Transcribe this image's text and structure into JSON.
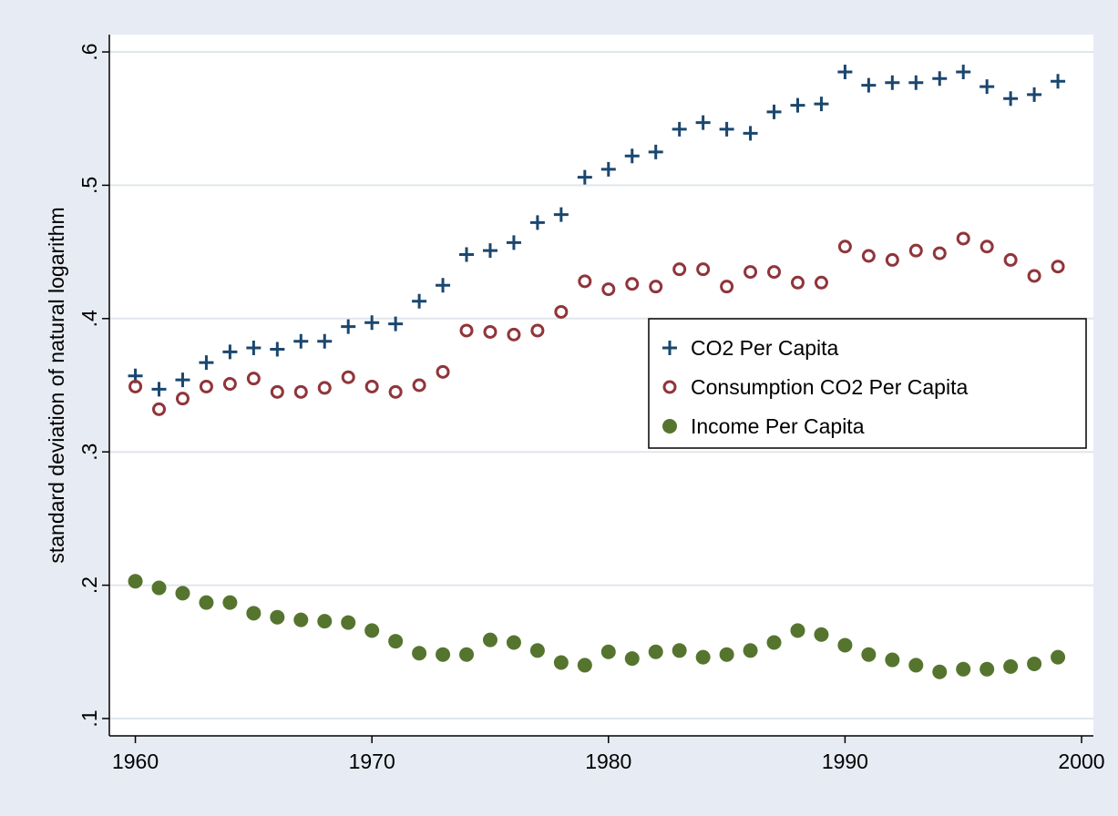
{
  "chart_data": {
    "type": "scatter",
    "ylabel": "standard deviation of natural logarithm",
    "x": [
      1960,
      1961,
      1962,
      1963,
      1964,
      1965,
      1966,
      1967,
      1968,
      1969,
      1970,
      1971,
      1972,
      1973,
      1974,
      1975,
      1976,
      1977,
      1978,
      1979,
      1980,
      1981,
      1982,
      1983,
      1984,
      1985,
      1986,
      1987,
      1988,
      1989,
      1990,
      1991,
      1992,
      1993,
      1994,
      1995,
      1996,
      1997,
      1998,
      1999
    ],
    "series": [
      {
        "name": "CO2 Per Capita",
        "color": "#1a476f",
        "marker": "plus",
        "values": [
          0.357,
          0.347,
          0.354,
          0.367,
          0.375,
          0.378,
          0.377,
          0.383,
          0.383,
          0.394,
          0.397,
          0.396,
          0.413,
          0.425,
          0.448,
          0.451,
          0.457,
          0.472,
          0.478,
          0.506,
          0.512,
          0.522,
          0.525,
          0.542,
          0.547,
          0.542,
          0.539,
          0.555,
          0.56,
          0.561,
          0.585,
          0.575,
          0.577,
          0.577,
          0.58,
          0.585,
          0.574,
          0.565,
          0.568,
          0.578
        ]
      },
      {
        "name": "Consumption CO2 Per Capita",
        "color": "#90353b",
        "marker": "hollow-circle",
        "values": [
          0.349,
          0.332,
          0.34,
          0.349,
          0.351,
          0.355,
          0.345,
          0.345,
          0.348,
          0.356,
          0.349,
          0.345,
          0.35,
          0.36,
          0.391,
          0.39,
          0.388,
          0.391,
          0.405,
          0.428,
          0.422,
          0.426,
          0.424,
          0.437,
          0.437,
          0.424,
          0.435,
          0.435,
          0.427,
          0.427,
          0.454,
          0.447,
          0.444,
          0.451,
          0.449,
          0.46,
          0.454,
          0.444,
          0.432,
          0.439
        ]
      },
      {
        "name": "Income Per Capita",
        "color": "#55752f",
        "marker": "circle",
        "values": [
          0.203,
          0.198,
          0.194,
          0.187,
          0.187,
          0.179,
          0.176,
          0.174,
          0.173,
          0.172,
          0.166,
          0.158,
          0.149,
          0.148,
          0.148,
          0.159,
          0.157,
          0.151,
          0.142,
          0.14,
          0.15,
          0.145,
          0.15,
          0.151,
          0.146,
          0.148,
          0.151,
          0.157,
          0.166,
          0.163,
          0.155,
          0.148,
          0.144,
          0.14,
          0.135,
          0.137,
          0.137,
          0.139,
          0.141,
          0.146
        ]
      }
    ],
    "xlim": [
      1958.9,
      2000.5
    ],
    "xticks": [
      1960,
      1970,
      1980,
      1990,
      2000
    ],
    "ylim": [
      0.087,
      0.613
    ],
    "yticks": [
      {
        "value": 0.1,
        "label": ".1"
      },
      {
        "value": 0.2,
        "label": ".2"
      },
      {
        "value": 0.3,
        "label": ".3"
      },
      {
        "value": 0.4,
        "label": ".4"
      },
      {
        "value": 0.5,
        "label": ".5"
      },
      {
        "value": 0.6,
        "label": ".6"
      }
    ],
    "grid": true
  }
}
